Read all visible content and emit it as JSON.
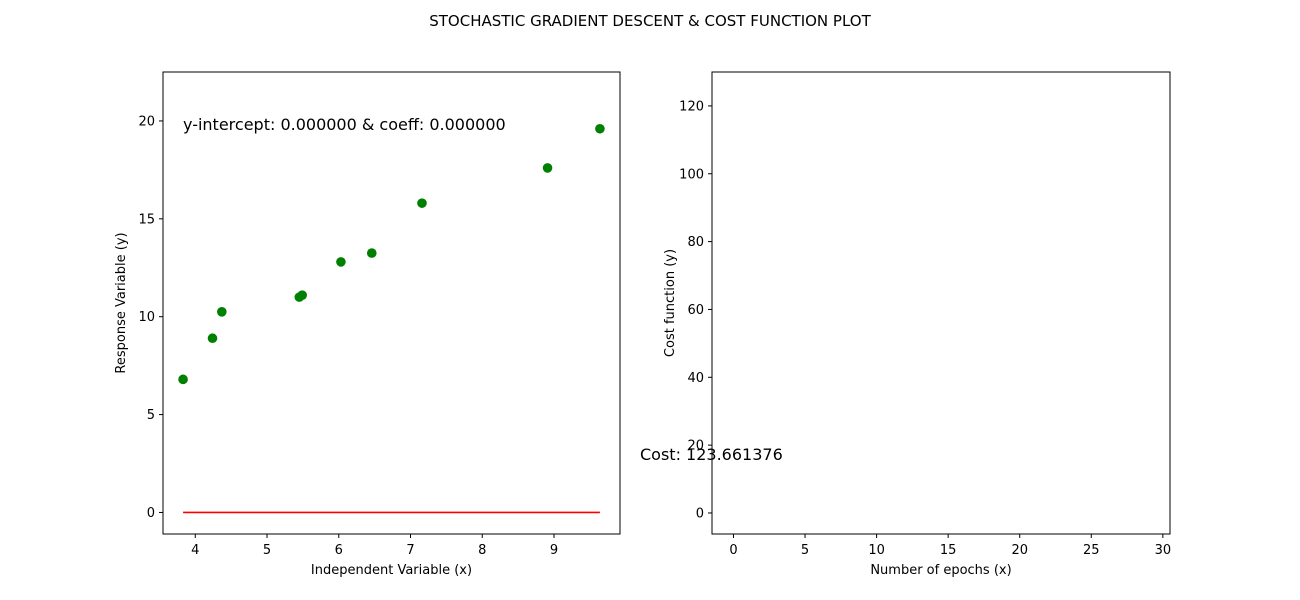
{
  "figure": {
    "suptitle": "STOCHASTIC GRADIENT DESCENT & COST FUNCTION PLOT"
  },
  "chart_data": [
    {
      "type": "scatter",
      "xlabel": "Independent Variable (x)",
      "ylabel": "Response Variable (y)",
      "xlim": [
        3.55,
        9.92
      ],
      "ylim": [
        -1.1,
        22.5
      ],
      "xticks": [
        4,
        5,
        6,
        7,
        8,
        9
      ],
      "yticks": [
        0,
        5,
        10,
        15,
        20
      ],
      "grid": false,
      "annotation": "y-intercept: 0.000000 & coeff: 0.000000",
      "points": {
        "color": "#008000",
        "x": [
          3.83,
          4.24,
          4.37,
          5.45,
          5.49,
          6.03,
          6.46,
          7.16,
          8.91,
          9.64
        ],
        "y": [
          6.8,
          8.9,
          10.25,
          11.0,
          11.1,
          12.8,
          13.25,
          15.8,
          17.6,
          19.6
        ]
      },
      "fit_line": {
        "color": "#ff0000",
        "x": [
          3.83,
          9.64
        ],
        "y": [
          0,
          0
        ]
      }
    },
    {
      "type": "line",
      "xlabel": "Number of epochs (x)",
      "ylabel": "Cost function (y)",
      "xlim": [
        -1.5,
        30.5
      ],
      "ylim": [
        -6.2,
        130
      ],
      "xticks": [
        0,
        5,
        10,
        15,
        20,
        25,
        30
      ],
      "yticks": [
        0,
        20,
        40,
        60,
        80,
        100,
        120
      ],
      "grid": false,
      "annotation": "Cost: 123.661376",
      "series": []
    }
  ]
}
